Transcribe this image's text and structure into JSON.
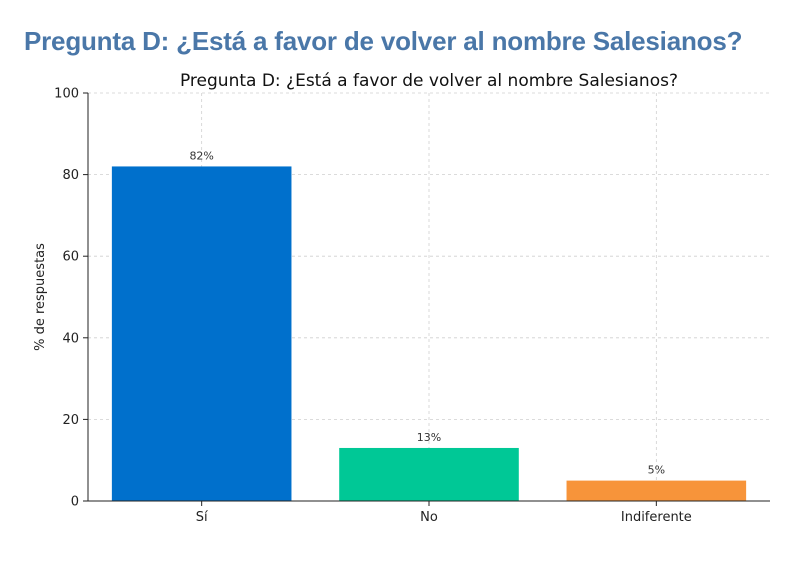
{
  "heading": "Pregunta D: ¿Está a favor de volver al nombre Salesianos?",
  "chart_data": {
    "type": "bar",
    "title": "Pregunta D: ¿Está a favor de volver al nombre Salesianos?",
    "xlabel": "",
    "ylabel": "% de respuestas",
    "categories": [
      "Sí",
      "No",
      "Indiferente"
    ],
    "values": [
      82,
      13,
      5
    ],
    "data_labels": [
      "82%",
      "13%",
      "5%"
    ],
    "colors": [
      "#0070cc",
      "#00c896",
      "#f7943a"
    ],
    "ylim": [
      0,
      100
    ],
    "yticks": [
      0,
      20,
      40,
      60,
      80,
      100
    ],
    "grid": true,
    "legend": "none"
  }
}
